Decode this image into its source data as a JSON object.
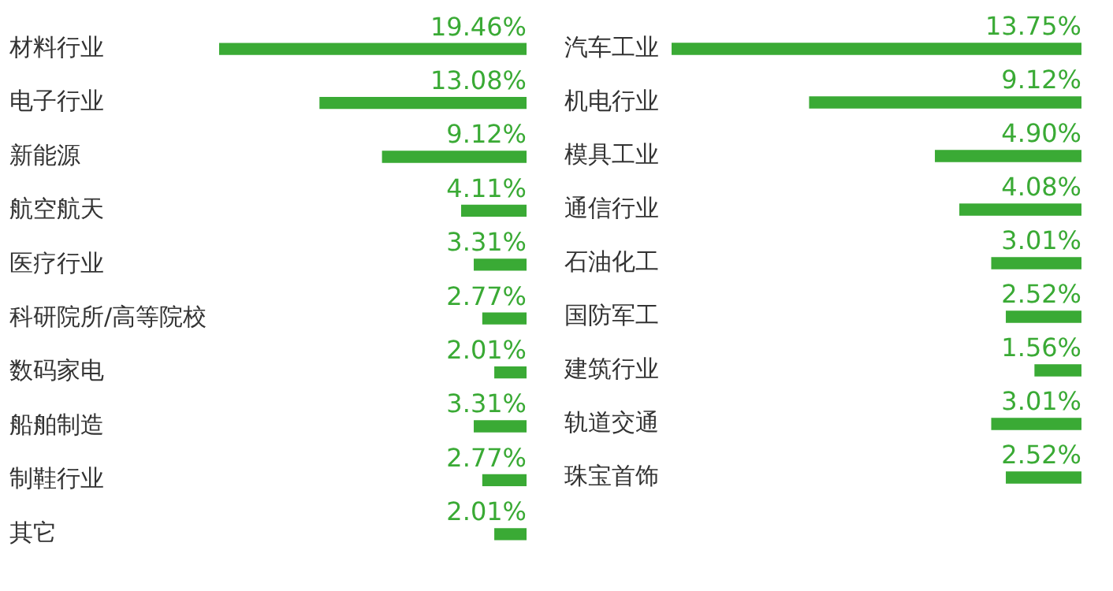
{
  "chart_data": [
    {
      "type": "bar",
      "orientation": "horizontal",
      "categories": [
        "材料行业",
        "电子行业",
        "新能源",
        "航空航天",
        "医疗行业",
        "科研院所/高等院校",
        "数码家电",
        "船舶制造",
        "制鞋行业",
        "其它"
      ],
      "values": [
        19.46,
        13.08,
        9.12,
        4.11,
        3.31,
        2.77,
        2.01,
        3.31,
        2.77,
        2.01
      ],
      "value_labels": [
        "19.46%",
        "13.08%",
        "9.12%",
        "4.11%",
        "3.31%",
        "2.77%",
        "2.01%",
        "3.31%",
        "2.77%",
        "2.01%"
      ],
      "color": "#3aaa35"
    },
    {
      "type": "bar",
      "orientation": "horizontal",
      "categories": [
        "汽车工业",
        "机电行业",
        "模具工业",
        "通信行业",
        "石油化工",
        "国防军工",
        "建筑行业",
        "轨道交通",
        "珠宝首饰"
      ],
      "values": [
        13.75,
        9.12,
        4.9,
        4.08,
        3.01,
        2.52,
        1.56,
        3.01,
        2.52
      ],
      "value_labels": [
        "13.75%",
        "9.12%",
        "4.90%",
        "4.08%",
        "3.01%",
        "2.52%",
        "1.56%",
        "3.01%",
        "2.52%"
      ],
      "color": "#3aaa35"
    }
  ]
}
